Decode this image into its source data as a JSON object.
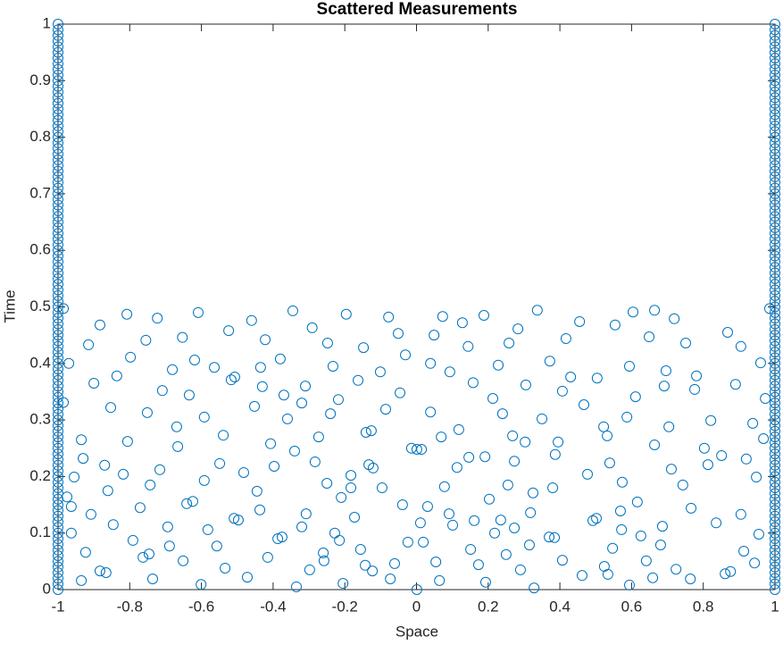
{
  "chart_data": {
    "type": "scatter",
    "title": "Scattered Measurements",
    "xlabel": "Space",
    "ylabel": "Time",
    "xlim": [
      -1,
      1
    ],
    "ylim": [
      0,
      1
    ],
    "xticks": [
      -1,
      -0.8,
      -0.6,
      -0.4,
      -0.2,
      0,
      0.2,
      0.4,
      0.6,
      0.8,
      1
    ],
    "yticks": [
      0,
      0.1,
      0.2,
      0.3,
      0.4,
      0.5,
      0.6,
      0.7,
      0.8,
      0.9,
      1
    ],
    "grid": false,
    "series": [
      {
        "color": "#0072bd",
        "x": [
          -0.808,
          -0.609,
          -0.345,
          -0.196,
          -0.078,
          0.073,
          0.188,
          0.337,
          0.604,
          0.664,
          -0.723,
          -0.46,
          -0.291,
          -0.051,
          0.128,
          0.283,
          0.455,
          0.719,
          0.868,
          -0.883,
          -0.915,
          -0.755,
          -0.653,
          -0.524,
          -0.422,
          -0.248,
          -0.148,
          0.049,
          0.144,
          0.258,
          0.417,
          0.554,
          0.649,
          0.751,
          0.905,
          -0.97,
          -0.798,
          -0.681,
          -0.619,
          -0.564,
          -0.507,
          -0.435,
          -0.38,
          -0.233,
          -0.101,
          -0.031,
          0.039,
          0.093,
          0.228,
          0.372,
          0.43,
          0.504,
          0.594,
          0.696,
          0.781,
          0.96,
          -0.9,
          -0.836,
          -0.709,
          -0.634,
          -0.517,
          -0.43,
          -0.37,
          -0.31,
          -0.218,
          -0.163,
          0.039,
          0.158,
          0.213,
          0.305,
          0.467,
          0.611,
          0.691,
          0.776,
          0.89,
          -0.853,
          -0.751,
          -0.669,
          -0.592,
          -0.452,
          -0.36,
          -0.32,
          -0.24,
          -0.141,
          -0.126,
          -0.086,
          -0.046,
          0.069,
          0.118,
          0.24,
          0.268,
          0.35,
          0.407,
          0.522,
          0.587,
          0.704,
          0.821,
          0.938,
          -0.935,
          -0.806,
          -0.666,
          -0.539,
          -0.407,
          -0.34,
          -0.273,
          -0.014,
          0.001,
          0.014,
          0.146,
          0.303,
          0.395,
          0.532,
          0.664,
          0.803,
          0.851,
          0.968,
          -0.93,
          -0.87,
          -0.818,
          -0.716,
          -0.549,
          -0.482,
          -0.397,
          -0.283,
          -0.183,
          -0.133,
          -0.121,
          0.113,
          0.191,
          0.273,
          0.387,
          0.477,
          0.539,
          0.711,
          0.813,
          0.92,
          -0.955,
          -0.861,
          -0.743,
          -0.592,
          -0.445,
          -0.25,
          -0.183,
          -0.096,
          0.078,
          0.255,
          0.325,
          0.38,
          0.574,
          0.743,
          0.948,
          -0.975,
          -0.963,
          -0.771,
          -0.641,
          -0.624,
          -0.437,
          -0.308,
          -0.21,
          -0.039,
          0.031,
          0.091,
          0.203,
          0.318,
          0.492,
          0.569,
          0.616,
          0.766,
          0.905,
          -0.908,
          -0.846,
          -0.694,
          -0.509,
          -0.497,
          -0.32,
          -0.173,
          0.011,
          0.101,
          0.161,
          0.235,
          0.273,
          0.502,
          0.686,
          0.836,
          -0.963,
          -0.791,
          -0.689,
          -0.582,
          -0.557,
          -0.387,
          -0.375,
          -0.228,
          -0.215,
          -0.024,
          0.019,
          0.218,
          0.315,
          0.37,
          0.385,
          0.572,
          0.626,
          0.681,
          0.955,
          -0.923,
          -0.763,
          -0.746,
          -0.651,
          -0.415,
          -0.298,
          -0.26,
          -0.156,
          -0.123,
          -0.061,
          0.054,
          0.151,
          0.173,
          0.25,
          0.407,
          0.524,
          0.547,
          0.641,
          0.913,
          0.943,
          -0.883,
          -0.866,
          -0.736,
          -0.534,
          -0.472,
          -0.258,
          -0.205,
          -0.143,
          -0.073,
          0.064,
          0.193,
          0.29,
          0.462,
          0.534,
          0.659,
          0.724,
          0.861,
          0.876,
          -0.935,
          -0.601,
          -0.335,
          0.001,
          0.328,
          0.594,
          0.764,
          -0.985,
          0.985,
          -0.985,
          0.973
        ],
        "values": [
          0.487,
          0.49,
          0.493,
          0.487,
          0.482,
          0.483,
          0.485,
          0.494,
          0.491,
          0.494,
          0.48,
          0.476,
          0.463,
          0.453,
          0.472,
          0.461,
          0.474,
          0.479,
          0.455,
          0.468,
          0.433,
          0.441,
          0.446,
          0.458,
          0.442,
          0.436,
          0.428,
          0.45,
          0.43,
          0.436,
          0.444,
          0.468,
          0.447,
          0.436,
          0.43,
          0.4,
          0.411,
          0.389,
          0.406,
          0.393,
          0.376,
          0.393,
          0.408,
          0.395,
          0.385,
          0.415,
          0.4,
          0.385,
          0.397,
          0.404,
          0.376,
          0.374,
          0.395,
          0.387,
          0.378,
          0.401,
          0.365,
          0.378,
          0.352,
          0.344,
          0.371,
          0.359,
          0.344,
          0.36,
          0.336,
          0.37,
          0.314,
          0.366,
          0.338,
          0.362,
          0.327,
          0.341,
          0.36,
          0.354,
          0.363,
          0.322,
          0.313,
          0.288,
          0.305,
          0.324,
          0.302,
          0.33,
          0.311,
          0.278,
          0.281,
          0.319,
          0.348,
          0.27,
          0.283,
          0.311,
          0.272,
          0.302,
          0.351,
          0.288,
          0.305,
          0.288,
          0.299,
          0.294,
          0.265,
          0.262,
          0.253,
          0.273,
          0.258,
          0.245,
          0.27,
          0.25,
          0.248,
          0.248,
          0.234,
          0.261,
          0.261,
          0.272,
          0.256,
          0.25,
          0.237,
          0.267,
          0.232,
          0.22,
          0.204,
          0.212,
          0.223,
          0.207,
          0.218,
          0.226,
          0.202,
          0.221,
          0.215,
          0.216,
          0.235,
          0.227,
          0.239,
          0.204,
          0.224,
          0.213,
          0.221,
          0.231,
          0.199,
          0.175,
          0.185,
          0.193,
          0.174,
          0.188,
          0.18,
          0.18,
          0.182,
          0.185,
          0.171,
          0.18,
          0.19,
          0.185,
          0.199,
          0.164,
          0.147,
          0.145,
          0.152,
          0.156,
          0.141,
          0.134,
          0.163,
          0.15,
          0.147,
          0.134,
          0.16,
          0.136,
          0.122,
          0.139,
          0.155,
          0.144,
          0.133,
          0.133,
          0.115,
          0.111,
          0.126,
          0.123,
          0.111,
          0.128,
          0.118,
          0.114,
          0.122,
          0.123,
          0.109,
          0.126,
          0.112,
          0.118,
          0.1,
          0.087,
          0.077,
          0.106,
          0.077,
          0.09,
          0.093,
          0.1,
          0.087,
          0.084,
          0.084,
          0.1,
          0.079,
          0.093,
          0.092,
          0.106,
          0.095,
          0.079,
          0.098,
          0.066,
          0.057,
          0.063,
          0.051,
          0.057,
          0.035,
          0.065,
          0.071,
          0.033,
          0.046,
          0.049,
          0.071,
          0.044,
          0.062,
          0.052,
          0.041,
          0.073,
          0.051,
          0.068,
          0.047,
          0.033,
          0.03,
          0.019,
          0.038,
          0.022,
          0.051,
          0.011,
          0.043,
          0.019,
          0.016,
          0.013,
          0.035,
          0.025,
          0.027,
          0.021,
          0.036,
          0.028,
          0.032,
          0.016,
          0.009,
          0.005,
          0,
          0.003,
          0.008,
          0.019,
          0.497,
          0.497,
          0.331,
          0.338
        ]
      },
      {
        "color": "#0072bd",
        "x": [
          -1,
          -1,
          -1,
          -1,
          -1,
          -1,
          -1,
          -1,
          -1,
          -1,
          -1,
          -1,
          -1,
          -1,
          -1,
          -1,
          -1,
          -1,
          -1,
          -1,
          -1,
          -1,
          -1,
          -1,
          -1,
          -1,
          -1,
          -1,
          -1,
          -1,
          -1,
          -1,
          -1,
          -1,
          -1,
          -1,
          -1,
          -1,
          -1,
          -1,
          -1,
          -1,
          -1,
          -1,
          -1,
          -1,
          -1,
          -1,
          -1,
          -1,
          -1,
          -1,
          -1,
          -1,
          -1,
          -1,
          -1,
          -1,
          -1,
          -1,
          -1,
          -1,
          -1,
          -1,
          -1,
          -1,
          -1,
          -1,
          -1,
          -1,
          -1,
          -1,
          -1,
          -1,
          -1,
          -1,
          -1,
          -1,
          -1,
          -1,
          -1,
          -1,
          -1,
          -1,
          -1,
          -1,
          -1,
          -1,
          -1,
          -1,
          -1,
          -1,
          -1,
          -1,
          -1,
          -1,
          -1,
          -1,
          -1,
          -1,
          -1
        ],
        "values": [
          0,
          0.01,
          0.02,
          0.03,
          0.04,
          0.05,
          0.06,
          0.07,
          0.08,
          0.09,
          0.1,
          0.11,
          0.12,
          0.13,
          0.14,
          0.15,
          0.16,
          0.17,
          0.18,
          0.19,
          0.2,
          0.21,
          0.22,
          0.23,
          0.24,
          0.25,
          0.26,
          0.27,
          0.28,
          0.29,
          0.3,
          0.31,
          0.32,
          0.33,
          0.34,
          0.35,
          0.36,
          0.37,
          0.38,
          0.39,
          0.4,
          0.41,
          0.42,
          0.43,
          0.44,
          0.45,
          0.46,
          0.47,
          0.48,
          0.49,
          0.5,
          0.51,
          0.52,
          0.53,
          0.54,
          0.55,
          0.56,
          0.57,
          0.58,
          0.59,
          0.6,
          0.61,
          0.62,
          0.63,
          0.64,
          0.65,
          0.66,
          0.67,
          0.68,
          0.69,
          0.7,
          0.71,
          0.72,
          0.73,
          0.74,
          0.75,
          0.76,
          0.77,
          0.78,
          0.79,
          0.8,
          0.81,
          0.82,
          0.83,
          0.84,
          0.85,
          0.86,
          0.87,
          0.88,
          0.89,
          0.9,
          0.91,
          0.92,
          0.93,
          0.94,
          0.95,
          0.96,
          0.97,
          0.98,
          0.99,
          1
        ]
      },
      {
        "color": "#0072bd",
        "x": [
          1,
          1,
          1,
          1,
          1,
          1,
          1,
          1,
          1,
          1,
          1,
          1,
          1,
          1,
          1,
          1,
          1,
          1,
          1,
          1,
          1,
          1,
          1,
          1,
          1,
          1,
          1,
          1,
          1,
          1,
          1,
          1,
          1,
          1,
          1,
          1,
          1,
          1,
          1,
          1,
          1,
          1,
          1,
          1,
          1,
          1,
          1,
          1,
          1,
          1,
          1,
          1,
          1,
          1,
          1,
          1,
          1,
          1,
          1,
          1,
          1,
          1,
          1,
          1,
          1,
          1,
          1,
          1,
          1,
          1,
          1,
          1,
          1,
          1,
          1,
          1,
          1,
          1,
          1,
          1,
          1,
          1,
          1,
          1,
          1,
          1,
          1,
          1,
          1,
          1,
          1,
          1,
          1,
          1,
          1,
          1,
          1,
          1,
          1,
          1,
          1
        ],
        "values": [
          0,
          0.01,
          0.02,
          0.03,
          0.04,
          0.05,
          0.06,
          0.07,
          0.08,
          0.09,
          0.1,
          0.11,
          0.12,
          0.13,
          0.14,
          0.15,
          0.16,
          0.17,
          0.18,
          0.19,
          0.2,
          0.21,
          0.22,
          0.23,
          0.24,
          0.25,
          0.26,
          0.27,
          0.28,
          0.29,
          0.3,
          0.31,
          0.32,
          0.33,
          0.34,
          0.35,
          0.36,
          0.37,
          0.38,
          0.39,
          0.4,
          0.41,
          0.42,
          0.43,
          0.44,
          0.45,
          0.46,
          0.47,
          0.48,
          0.49,
          0.5,
          0.51,
          0.52,
          0.53,
          0.54,
          0.55,
          0.56,
          0.57,
          0.58,
          0.59,
          0.6,
          0.61,
          0.62,
          0.63,
          0.64,
          0.65,
          0.66,
          0.67,
          0.68,
          0.69,
          0.7,
          0.71,
          0.72,
          0.73,
          0.74,
          0.75,
          0.76,
          0.77,
          0.78,
          0.79,
          0.8,
          0.81,
          0.82,
          0.83,
          0.84,
          0.85,
          0.86,
          0.87,
          0.88,
          0.89,
          0.9,
          0.91,
          0.92,
          0.93,
          0.94,
          0.95,
          0.96,
          0.97,
          0.98,
          0.99,
          1
        ]
      }
    ]
  }
}
